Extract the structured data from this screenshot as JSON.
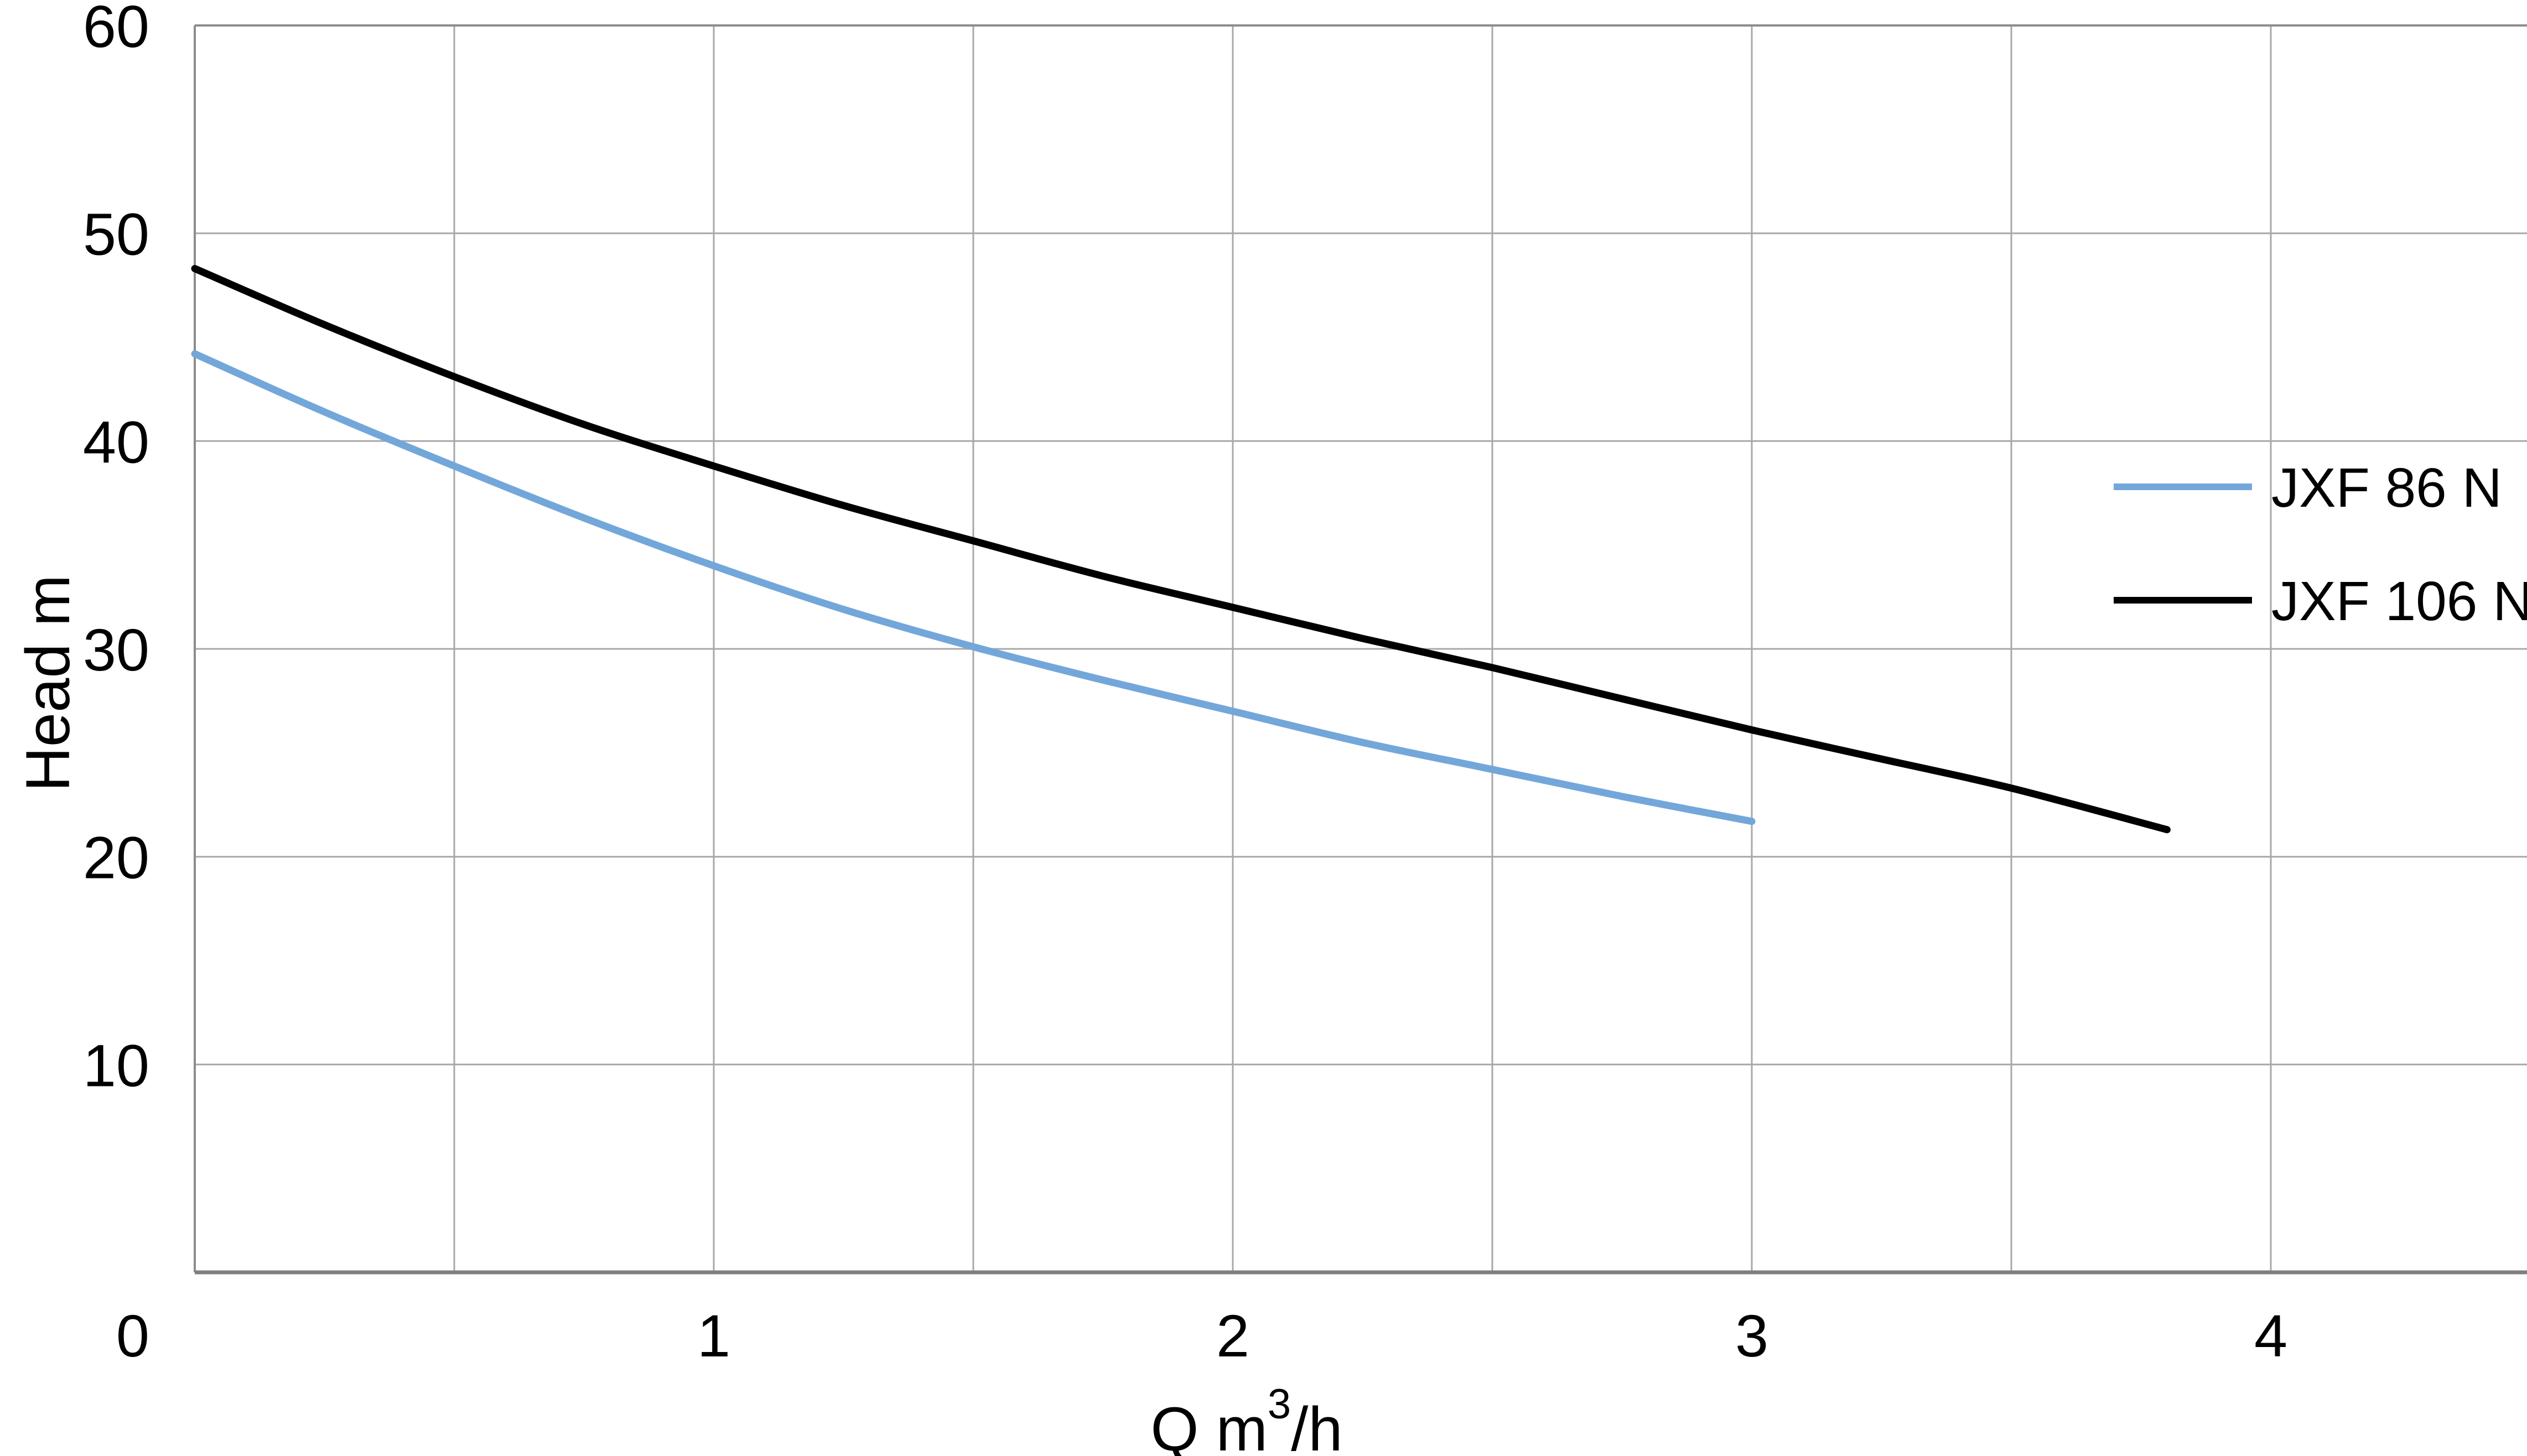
{
  "chart_data": {
    "type": "line",
    "title": "",
    "xlabel_base": "Q m",
    "xlabel_sup": "3",
    "xlabel_suffix": "/h",
    "ylabel": "Head m",
    "xlim": [
      0,
      4.5
    ],
    "ylim": [
      0,
      60
    ],
    "x_tick_values": [
      0,
      1,
      2,
      3,
      4
    ],
    "x_tick_labels": [
      "0",
      "1",
      "2",
      "3",
      "4"
    ],
    "x_grid_step": 0.5,
    "y_tick_values": [
      60,
      50,
      40,
      30,
      20,
      10
    ],
    "y_tick_labels": [
      "60",
      "50",
      "40",
      "30",
      "20",
      "10"
    ],
    "y_grid_step": 10,
    "grid": true,
    "legend_position": "inside-right",
    "colors": {
      "series_jxf_86_n": "#73a7da",
      "series_jxf_106_n": "#000000",
      "gridline": "#a8a8a8",
      "border": "#8c8c8c",
      "bottom_axis": "#7f7f7f",
      "text": "#000000",
      "background": "#ffffff"
    },
    "series": [
      {
        "name": "JXF 86 N",
        "color_key": "series_jxf_86_n",
        "points": [
          [
            0,
            44.2
          ],
          [
            0.25,
            41.4
          ],
          [
            0.5,
            38.8
          ],
          [
            0.75,
            36.3
          ],
          [
            1,
            34.0
          ],
          [
            1.25,
            31.9
          ],
          [
            1.5,
            30.1
          ],
          [
            1.75,
            28.5
          ],
          [
            2,
            27.0
          ],
          [
            2.25,
            25.5
          ],
          [
            2.5,
            24.2
          ],
          [
            2.75,
            22.9
          ],
          [
            3,
            21.7
          ]
        ]
      },
      {
        "name": "JXF 106 N",
        "color_key": "series_jxf_106_n",
        "points": [
          [
            0,
            48.3
          ],
          [
            0.25,
            45.6
          ],
          [
            0.5,
            43.1
          ],
          [
            0.75,
            40.8
          ],
          [
            1,
            38.8
          ],
          [
            1.25,
            36.9
          ],
          [
            1.5,
            35.2
          ],
          [
            1.75,
            33.5
          ],
          [
            2,
            32.0
          ],
          [
            2.25,
            30.5
          ],
          [
            2.5,
            29.1
          ],
          [
            2.75,
            27.6
          ],
          [
            3,
            26.1
          ],
          [
            3.25,
            24.7
          ],
          [
            3.5,
            23.3
          ],
          [
            3.8,
            21.3
          ]
        ]
      }
    ]
  }
}
